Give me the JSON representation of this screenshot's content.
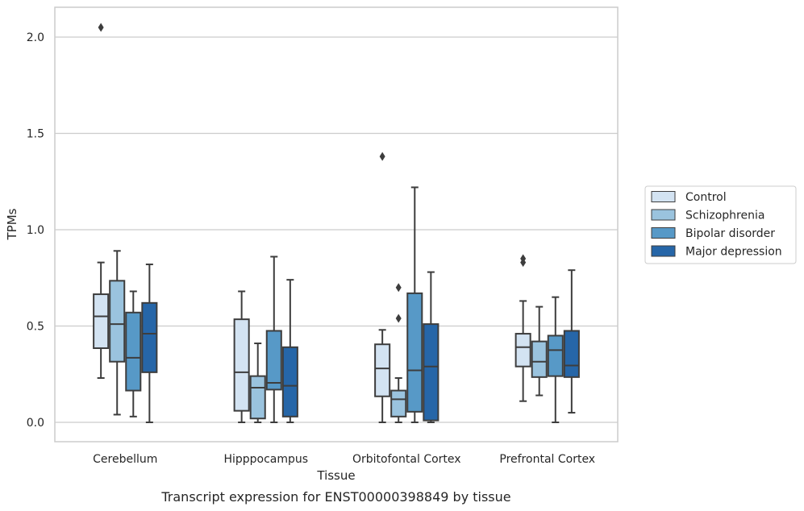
{
  "chart_data": {
    "type": "box",
    "xlabel": "Tissue",
    "ylabel": "TPMs",
    "caption": "Transcript expression for ENST00000398849 by tissue",
    "ylim": [
      -0.1,
      2.15
    ],
    "yticks": [
      0.0,
      0.5,
      1.0,
      1.5,
      2.0
    ],
    "ytick_labels": [
      "0.0",
      "0.5",
      "1.0",
      "1.5",
      "2.0"
    ],
    "grid": "horizontal",
    "legend_position": "right",
    "categories": [
      "Cerebellum",
      "Hipppocampus",
      "Orbitofontal Cortex",
      "Prefrontal Cortex"
    ],
    "series": [
      {
        "name": "Control",
        "color": "#d3e3f2",
        "boxes": [
          {
            "whislo": 0.23,
            "q1": 0.385,
            "med": 0.55,
            "q3": 0.665,
            "whishi": 0.83,
            "fliers": [
              2.05
            ]
          },
          {
            "whislo": 0.0,
            "q1": 0.06,
            "med": 0.26,
            "q3": 0.535,
            "whishi": 0.68,
            "fliers": []
          },
          {
            "whislo": 0.0,
            "q1": 0.135,
            "med": 0.28,
            "q3": 0.405,
            "whishi": 0.48,
            "fliers": [
              1.38
            ]
          },
          {
            "whislo": 0.11,
            "q1": 0.29,
            "med": 0.39,
            "q3": 0.46,
            "whishi": 0.63,
            "fliers": [
              0.83,
              0.85
            ]
          }
        ]
      },
      {
        "name": "Schizophrenia",
        "color": "#9ac3de",
        "boxes": [
          {
            "whislo": 0.04,
            "q1": 0.315,
            "med": 0.51,
            "q3": 0.735,
            "whishi": 0.89,
            "fliers": []
          },
          {
            "whislo": 0.0,
            "q1": 0.02,
            "med": 0.18,
            "q3": 0.24,
            "whishi": 0.41,
            "fliers": []
          },
          {
            "whislo": 0.0,
            "q1": 0.03,
            "med": 0.12,
            "q3": 0.165,
            "whishi": 0.23,
            "fliers": [
              0.54,
              0.7
            ]
          },
          {
            "whislo": 0.14,
            "q1": 0.235,
            "med": 0.315,
            "q3": 0.42,
            "whishi": 0.6,
            "fliers": []
          }
        ]
      },
      {
        "name": "Bipolar disorder",
        "color": "#5799c7",
        "boxes": [
          {
            "whislo": 0.03,
            "q1": 0.165,
            "med": 0.335,
            "q3": 0.57,
            "whishi": 0.68,
            "fliers": []
          },
          {
            "whislo": 0.0,
            "q1": 0.17,
            "med": 0.205,
            "q3": 0.475,
            "whishi": 0.86,
            "fliers": []
          },
          {
            "whislo": 0.0,
            "q1": 0.055,
            "med": 0.27,
            "q3": 0.67,
            "whishi": 1.22,
            "fliers": []
          },
          {
            "whislo": 0.0,
            "q1": 0.24,
            "med": 0.375,
            "q3": 0.45,
            "whishi": 0.65,
            "fliers": []
          }
        ]
      },
      {
        "name": "Major depression",
        "color": "#2666a8",
        "boxes": [
          {
            "whislo": 0.0,
            "q1": 0.26,
            "med": 0.46,
            "q3": 0.62,
            "whishi": 0.82,
            "fliers": []
          },
          {
            "whislo": 0.0,
            "q1": 0.03,
            "med": 0.19,
            "q3": 0.39,
            "whishi": 0.74,
            "fliers": []
          },
          {
            "whislo": 0.0,
            "q1": 0.01,
            "med": 0.29,
            "q3": 0.51,
            "whishi": 0.78,
            "fliers": []
          },
          {
            "whislo": 0.05,
            "q1": 0.235,
            "med": 0.295,
            "q3": 0.475,
            "whishi": 0.79,
            "fliers": []
          }
        ]
      }
    ],
    "style": {
      "line_color": "#3d3d3d",
      "grid_color": "#cccccc",
      "frame_color": "#cccccc"
    }
  }
}
